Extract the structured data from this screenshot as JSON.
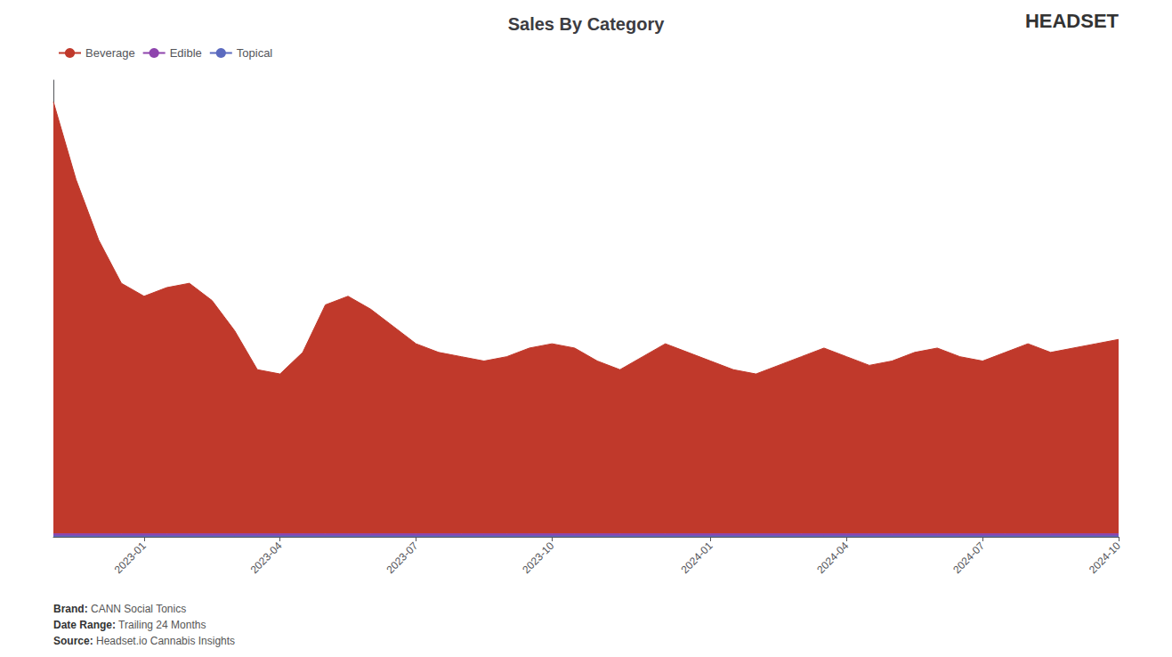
{
  "chart_data": {
    "type": "area",
    "title": "Sales By Category",
    "stacked": true,
    "grid": false,
    "legend": "upper left",
    "tick_labels": "x",
    "categories": [
      null,
      null,
      null,
      null,
      "2023-01",
      null,
      null,
      null,
      null,
      null,
      "2023-04",
      null,
      null,
      null,
      null,
      null,
      "2023-07",
      null,
      null,
      null,
      null,
      null,
      "2023-10",
      null,
      null,
      null,
      null,
      null,
      null,
      "2024-01",
      null,
      null,
      null,
      null,
      null,
      "2024-04",
      null,
      null,
      null,
      null,
      null,
      "2024-07",
      null,
      null,
      null,
      null,
      null,
      "2024-10"
    ],
    "ylim": [
      0,
      1.05735
    ],
    "series": [
      {
        "name": "Topical",
        "color": "#5b6abf",
        "values": [
          0.002,
          0.002,
          0.002,
          0.002,
          0.002,
          0.002,
          0.002,
          0.002,
          0.002,
          0.002,
          0.002,
          0.002,
          0.002,
          0.002,
          0.002,
          0.002,
          0.002,
          0.002,
          0.002,
          0.002,
          0.002,
          0.002,
          0.002,
          0.002,
          0.002,
          0.002,
          0.002,
          0.002,
          0.002,
          0.002,
          0.002,
          0.002,
          0.002,
          0.002,
          0.002,
          0.002,
          0.002,
          0.002,
          0.002,
          0.002,
          0.002,
          0.002,
          0.002,
          0.002,
          0.002,
          0.002,
          0.002,
          0.002
        ]
      },
      {
        "name": "Edible",
        "color": "#8e44ad",
        "values": [
          0.005,
          0.005,
          0.005,
          0.005,
          0.005,
          0.005,
          0.005,
          0.005,
          0.005,
          0.005,
          0.005,
          0.005,
          0.005,
          0.005,
          0.005,
          0.005,
          0.005,
          0.005,
          0.005,
          0.005,
          0.005,
          0.005,
          0.005,
          0.005,
          0.005,
          0.005,
          0.005,
          0.005,
          0.005,
          0.005,
          0.005,
          0.005,
          0.005,
          0.005,
          0.005,
          0.005,
          0.005,
          0.005,
          0.005,
          0.005,
          0.005,
          0.005,
          0.005,
          0.005,
          0.005,
          0.005,
          0.005,
          0.005
        ]
      },
      {
        "name": "Beverage",
        "color": "#c0392b",
        "values": [
          1.0,
          0.82,
          0.68,
          0.58,
          0.55,
          0.57,
          0.58,
          0.54,
          0.47,
          0.38,
          0.37,
          0.42,
          0.53,
          0.55,
          0.52,
          0.48,
          0.44,
          0.42,
          0.41,
          0.4,
          0.41,
          0.43,
          0.44,
          0.43,
          0.4,
          0.38,
          0.41,
          0.44,
          0.42,
          0.4,
          0.38,
          0.37,
          0.39,
          0.41,
          0.43,
          0.41,
          0.39,
          0.4,
          0.42,
          0.43,
          0.41,
          0.4,
          0.42,
          0.44,
          0.42,
          0.43,
          0.44,
          0.45
        ]
      }
    ],
    "annotations": [
      "HEADSET",
      "Brand: CANN Social Tonics",
      "Date Range: Trailing 24 Months",
      "Source: Headset.io Cannabis Insights"
    ]
  }
}
